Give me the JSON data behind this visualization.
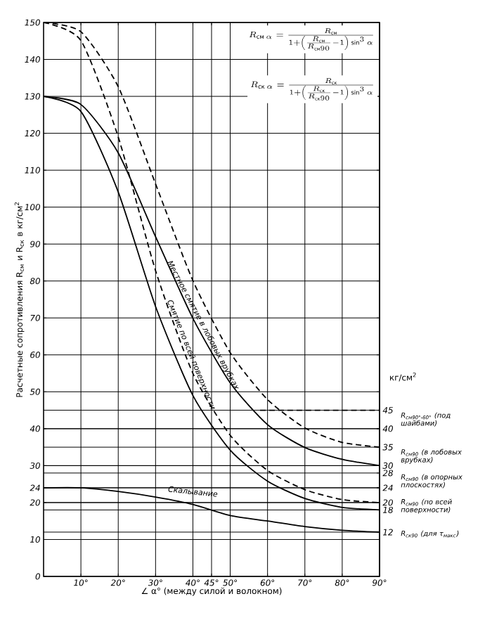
{
  "chart_data": {
    "type": "line",
    "xlabel": "∠ α° (между силой и волокном)",
    "ylabel": "Расчетные сопротивления R$_{см}$ и R$_{ск}$ в кг/см$^{2}$",
    "y2label": "кг/см$^{2}$",
    "x": [
      0,
      10,
      20,
      30,
      40,
      50,
      60,
      70,
      80,
      90
    ],
    "series": [
      {
        "color": "#000000",
        "line_style": "dashed",
        "values": [
          150,
          147.5,
          132.6,
          106.3,
          80.1,
          60.6,
          47.9,
          40.2,
          36.3,
          35
        ]
      },
      {
        "color": "#000000",
        "line_style": "dashed",
        "values": [
          150,
          145.1,
          119,
          82.8,
          55,
          38.2,
          28.7,
          23.5,
          20.8,
          20
        ]
      },
      {
        "color": "#000000",
        "line_style": "solid",
        "values": [
          130,
          127.8,
          114.7,
          92,
          69.9,
          52.4,
          41.1,
          34.9,
          31.7,
          30
        ]
      },
      {
        "color": "#000000",
        "line_style": "solid",
        "values": [
          130,
          125.9,
          104.1,
          73.1,
          49,
          34.2,
          25.8,
          21.1,
          18.7,
          18
        ]
      },
      {
        "color": "#000000",
        "line_style": "solid",
        "values": [
          24,
          24,
          23,
          21.5,
          19.5,
          16.5,
          15,
          13.5,
          12.5,
          12
        ]
      },
      {
        "color": "#000000",
        "line_style": "dashed",
        "x": [
          58,
          90
        ],
        "values": [
          45,
          45
        ]
      }
    ],
    "xlim": [
      0,
      90
    ],
    "ylim": [
      0,
      150
    ],
    "xticks": [
      {
        "value": 10,
        "label": "10°"
      },
      {
        "value": 20,
        "label": "20°"
      },
      {
        "value": 30,
        "label": "30°"
      },
      {
        "value": 40,
        "label": "40°"
      },
      {
        "value": 45,
        "label": "45°"
      },
      {
        "value": 50,
        "label": "50°"
      },
      {
        "value": 60,
        "label": "60°"
      },
      {
        "value": 70,
        "label": "70°"
      },
      {
        "value": 80,
        "label": "80°"
      },
      {
        "value": 90,
        "label": "90°"
      }
    ],
    "yticks": [
      0,
      10,
      20,
      24,
      30,
      40,
      50,
      60,
      70,
      80,
      90,
      100,
      110,
      120,
      130,
      140,
      150
    ],
    "y2lim": [
      0,
      150
    ],
    "y2ticks": [
      12,
      18,
      20,
      24,
      28,
      30,
      35,
      40,
      45
    ],
    "grid": true,
    "annotations": [
      "R_{\\text{см}\\,\\alpha}=\\frac{R_{\\text{см}}}{1+\\left(\\frac{R_{\\text{см}}}{R_{\\text{см}90}}-1\\right)\\sin^{3}\\alpha}",
      "R_{\\text{ск}\\,\\alpha}=\\frac{R_{\\text{ск}}}{1+\\left(\\frac{R_{\\text{ск}}}{R_{\\text{ск}90}}-1\\right)\\sin^{3}\\alpha}",
      {
        "text": "Местное смятие в лобовых врубках",
        "x": 42.7,
        "y": 68
      },
      {
        "text": "Смятие по всей поверхности",
        "x": 39.5,
        "y": 60
      },
      "Скалывание",
      "R$_{см90°-60°}$ (под шайбами)",
      "R$_{см90}$ (в лобовых врубках)",
      "R$_{см90}$ (в опорных плоскостях)",
      "R$_{см90}$ (по всей поверхности)",
      "R$_{ск90}$ (для τ$_{макс}$)"
    ]
  }
}
